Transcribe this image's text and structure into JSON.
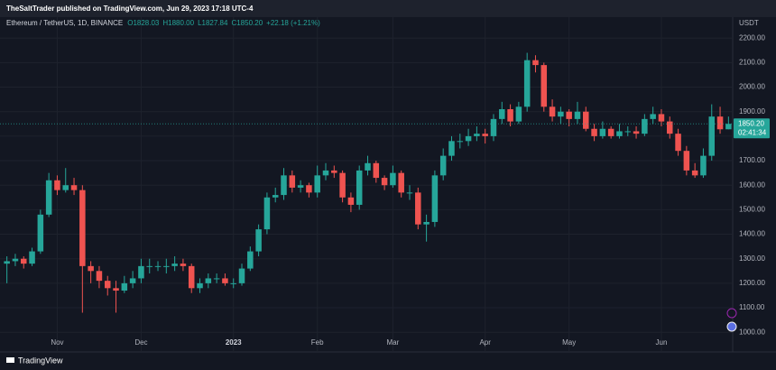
{
  "publisher_line": "TheSaltTrader published on TradingView.com, Jun 29, 2023 17:18 UTC-4",
  "footer": "TradingView",
  "chart_data": {
    "type": "candlestick",
    "symbol": "Ethereum / TetherUS, 1D, BINANCE",
    "ohlc_text": [
      "O1828.03",
      "H1880.00",
      "L1827.84",
      "C1850.20",
      "+22.18 (+1.21%)"
    ],
    "y_axis_label": "USDT",
    "last_price": {
      "value": 1850.2,
      "label": "1850.20"
    },
    "countdown": "02:41:34",
    "colors": {
      "up": "#26a69a",
      "down": "#ef5350"
    },
    "grid": true,
    "ylim": [
      975,
      2245
    ],
    "yticks": [
      {
        "value": 1000,
        "label": "1000.00"
      },
      {
        "value": 1100,
        "label": "1100.00"
      },
      {
        "value": 1200,
        "label": "1200.00"
      },
      {
        "value": 1300,
        "label": "1300.00"
      },
      {
        "value": 1400,
        "label": "1400.00"
      },
      {
        "value": 1500,
        "label": "1500.00"
      },
      {
        "value": 1600,
        "label": "1600.00"
      },
      {
        "value": 1700,
        "label": "1700.00"
      },
      {
        "value": 1800,
        "label": "1800.00"
      },
      {
        "value": 1900,
        "label": "1900.00"
      },
      {
        "value": 2000,
        "label": "2000.00"
      },
      {
        "value": 2100,
        "label": "2100.00"
      },
      {
        "value": 2200,
        "label": "2200.00"
      }
    ],
    "categories": [
      null,
      null,
      null,
      null,
      null,
      null,
      "Nov",
      null,
      null,
      null,
      null,
      null,
      null,
      null,
      null,
      null,
      "Dec",
      null,
      null,
      null,
      null,
      null,
      null,
      null,
      null,
      null,
      null,
      "2023",
      null,
      null,
      null,
      null,
      null,
      null,
      null,
      null,
      null,
      "Feb",
      null,
      null,
      null,
      null,
      null,
      null,
      null,
      null,
      "Mar",
      null,
      null,
      null,
      null,
      null,
      null,
      null,
      null,
      null,
      null,
      "Apr",
      null,
      null,
      null,
      null,
      null,
      null,
      null,
      null,
      null,
      "May",
      null,
      null,
      null,
      null,
      null,
      null,
      null,
      null,
      null,
      null,
      "Jun",
      null,
      null,
      null,
      null,
      null,
      null,
      null,
      null
    ],
    "open": [
      1280,
      1290,
      1300,
      1280,
      1330,
      1480,
      1620,
      1580,
      1600,
      1580,
      1270,
      1250,
      1210,
      1180,
      1170,
      1200,
      1220,
      1270,
      1270,
      1270,
      1270,
      1280,
      1270,
      1180,
      1200,
      1220,
      1220,
      1200,
      1200,
      1260,
      1330,
      1420,
      1550,
      1560,
      1640,
      1590,
      1600,
      1570,
      1640,
      1660,
      1650,
      1550,
      1520,
      1660,
      1690,
      1630,
      1600,
      1650,
      1570,
      1570,
      1440,
      1450,
      1640,
      1720,
      1780,
      1780,
      1800,
      1810,
      1800,
      1870,
      1910,
      1860,
      1920,
      2110,
      2090,
      1920,
      1880,
      1900,
      1870,
      1900,
      1830,
      1800,
      1830,
      1800,
      1820,
      1820,
      1810,
      1870,
      1890,
      1860,
      1810,
      1740,
      1660,
      1640,
      1720,
      1880,
      1828.03
    ],
    "high": [
      1310,
      1320,
      1310,
      1345,
      1500,
      1650,
      1640,
      1670,
      1630,
      1600,
      1290,
      1270,
      1230,
      1210,
      1230,
      1250,
      1300,
      1300,
      1290,
      1300,
      1310,
      1300,
      1280,
      1220,
      1240,
      1240,
      1240,
      1220,
      1280,
      1350,
      1440,
      1570,
      1590,
      1670,
      1660,
      1620,
      1610,
      1680,
      1690,
      1680,
      1660,
      1570,
      1680,
      1720,
      1700,
      1640,
      1680,
      1660,
      1600,
      1590,
      1480,
      1660,
      1750,
      1800,
      1810,
      1830,
      1840,
      1830,
      1890,
      1940,
      1930,
      1940,
      2140,
      2130,
      2100,
      1950,
      1920,
      1910,
      1940,
      1920,
      1850,
      1860,
      1840,
      1850,
      1840,
      1840,
      1890,
      1920,
      1910,
      1880,
      1830,
      1760,
      1690,
      1750,
      1930,
      1920,
      1880
    ],
    "low": [
      1200,
      1270,
      1260,
      1270,
      1320,
      1470,
      1560,
      1570,
      1560,
      1080,
      1200,
      1180,
      1150,
      1080,
      1160,
      1180,
      1200,
      1240,
      1250,
      1240,
      1250,
      1250,
      1160,
      1160,
      1180,
      1200,
      1190,
      1180,
      1190,
      1250,
      1310,
      1400,
      1530,
      1540,
      1570,
      1570,
      1550,
      1550,
      1620,
      1630,
      1530,
      1490,
      1500,
      1640,
      1610,
      1580,
      1590,
      1550,
      1540,
      1420,
      1370,
      1430,
      1620,
      1700,
      1750,
      1760,
      1780,
      1770,
      1780,
      1850,
      1840,
      1850,
      1900,
      2060,
      1900,
      1860,
      1850,
      1840,
      1850,
      1820,
      1780,
      1790,
      1790,
      1790,
      1800,
      1790,
      1800,
      1850,
      1840,
      1790,
      1720,
      1640,
      1630,
      1630,
      1700,
      1810,
      1827.84
    ],
    "close": [
      1290,
      1300,
      1280,
      1330,
      1480,
      1620,
      1580,
      1600,
      1580,
      1270,
      1250,
      1210,
      1180,
      1170,
      1200,
      1220,
      1270,
      1270,
      1270,
      1270,
      1280,
      1270,
      1180,
      1200,
      1220,
      1220,
      1200,
      1200,
      1260,
      1330,
      1420,
      1550,
      1560,
      1640,
      1590,
      1600,
      1570,
      1640,
      1660,
      1650,
      1550,
      1520,
      1660,
      1690,
      1630,
      1600,
      1650,
      1570,
      1570,
      1440,
      1450,
      1640,
      1720,
      1780,
      1780,
      1800,
      1810,
      1800,
      1870,
      1910,
      1860,
      1920,
      2110,
      2090,
      1920,
      1880,
      1900,
      1870,
      1900,
      1830,
      1800,
      1830,
      1800,
      1820,
      1820,
      1810,
      1870,
      1890,
      1860,
      1810,
      1740,
      1660,
      1640,
      1720,
      1880,
      1828.03,
      1850.2
    ]
  }
}
